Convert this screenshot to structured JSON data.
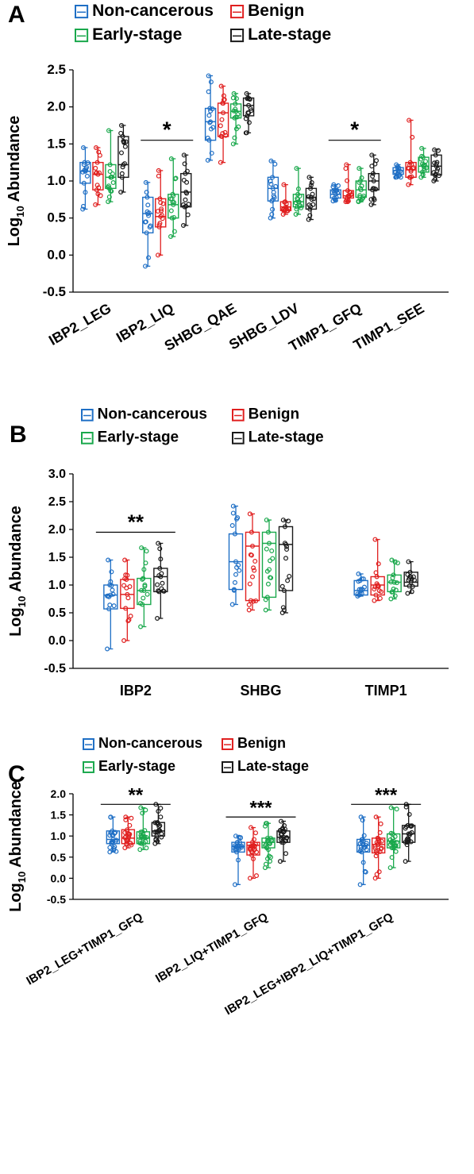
{
  "series_names": [
    "Non-cancerous",
    "Benign",
    "Early-stage",
    "Late-stage"
  ],
  "series_colors": [
    "#1f6fc5",
    "#e02020",
    "#1aa84c",
    "#1a1a1a"
  ],
  "y_axis_label": "Log10 Abundance",
  "chart_data": [
    {
      "panel_label": "A",
      "type": "box",
      "categories": [
        "IBP2_LEG",
        "IBP2_LIQ",
        "SHBG_QAE",
        "SHBG_LDV",
        "TIMP1_GFQ",
        "TIMP1_SEE"
      ],
      "ylabel": "Log10 Abundance",
      "ylim": [
        -0.5,
        2.5
      ],
      "yticks": [
        "2.5",
        "2.0",
        "1.5",
        "1.0",
        "0.5",
        "0.0",
        "-0.5"
      ],
      "ytick_values": [
        2.5,
        2.0,
        1.5,
        1.0,
        0.5,
        0.0,
        -0.5
      ],
      "legend": [
        "Non-cancerous",
        "Benign",
        "Early-stage",
        "Late-stage"
      ],
      "series": [
        {
          "name": "Non-cancerous",
          "boxes": [
            {
              "min": 0.62,
              "q1": 0.97,
              "median": 1.13,
              "q3": 1.25,
              "max": 1.45
            },
            {
              "min": -0.15,
              "q1": 0.3,
              "median": 0.56,
              "q3": 0.78,
              "max": 0.98
            },
            {
              "min": 1.28,
              "q1": 1.55,
              "median": 1.8,
              "q3": 1.98,
              "max": 2.42
            },
            {
              "min": 0.5,
              "q1": 0.73,
              "median": 0.9,
              "q3": 1.05,
              "max": 1.27
            },
            {
              "min": 0.73,
              "q1": 0.77,
              "median": 0.82,
              "q3": 0.88,
              "max": 0.95
            },
            {
              "min": 1.05,
              "q1": 1.09,
              "median": 1.14,
              "q3": 1.18,
              "max": 1.22
            }
          ]
        },
        {
          "name": "Benign",
          "boxes": [
            {
              "min": 0.68,
              "q1": 0.88,
              "median": 1.09,
              "q3": 1.25,
              "max": 1.45
            },
            {
              "min": 0.0,
              "q1": 0.38,
              "median": 0.52,
              "q3": 0.76,
              "max": 1.14
            },
            {
              "min": 1.25,
              "q1": 1.6,
              "median": 1.92,
              "q3": 2.05,
              "max": 2.28
            },
            {
              "min": 0.55,
              "q1": 0.6,
              "median": 0.65,
              "q3": 0.72,
              "max": 0.95
            },
            {
              "min": 0.72,
              "q1": 0.77,
              "median": 0.8,
              "q3": 0.87,
              "max": 1.22
            },
            {
              "min": 0.95,
              "q1": 1.05,
              "median": 1.15,
              "q3": 1.25,
              "max": 1.82
            }
          ]
        },
        {
          "name": "Early-stage",
          "boxes": [
            {
              "min": 0.72,
              "q1": 0.9,
              "median": 1.05,
              "q3": 1.22,
              "max": 1.68
            },
            {
              "min": 0.25,
              "q1": 0.5,
              "median": 0.68,
              "q3": 0.82,
              "max": 1.3
            },
            {
              "min": 1.5,
              "q1": 1.85,
              "median": 1.94,
              "q3": 2.04,
              "max": 2.18
            },
            {
              "min": 0.55,
              "q1": 0.65,
              "median": 0.72,
              "q3": 0.82,
              "max": 1.17
            },
            {
              "min": 0.72,
              "q1": 0.78,
              "median": 0.88,
              "q3": 1.0,
              "max": 1.17
            },
            {
              "min": 1.05,
              "q1": 1.12,
              "median": 1.2,
              "q3": 1.32,
              "max": 1.44
            }
          ]
        },
        {
          "name": "Late-stage",
          "boxes": [
            {
              "min": 0.85,
              "q1": 1.05,
              "median": 1.22,
              "q3": 1.6,
              "max": 1.75
            },
            {
              "min": 0.4,
              "q1": 0.65,
              "median": 0.85,
              "q3": 1.1,
              "max": 1.35
            },
            {
              "min": 1.65,
              "q1": 1.88,
              "median": 2.02,
              "q3": 2.12,
              "max": 2.18
            },
            {
              "min": 0.48,
              "q1": 0.62,
              "median": 0.78,
              "q3": 0.9,
              "max": 1.05
            },
            {
              "min": 0.68,
              "q1": 0.88,
              "median": 1.0,
              "q3": 1.1,
              "max": 1.35
            },
            {
              "min": 1.0,
              "q1": 1.08,
              "median": 1.2,
              "q3": 1.35,
              "max": 1.42
            }
          ]
        }
      ],
      "annotations": [
        {
          "text": "*",
          "category_index": 1,
          "y": 1.55
        },
        {
          "text": "*",
          "category_index": 4,
          "y": 1.55
        }
      ]
    },
    {
      "panel_label": "B",
      "type": "box",
      "categories": [
        "IBP2",
        "SHBG",
        "TIMP1"
      ],
      "ylabel": "Log10 Abundance",
      "ylim": [
        -0.5,
        3.0
      ],
      "yticks": [
        "3.0",
        "2.5",
        "2.0",
        "1.5",
        "1.0",
        "0.5",
        "0.0",
        "-0.5"
      ],
      "ytick_values": [
        3.0,
        2.5,
        2.0,
        1.5,
        1.0,
        0.5,
        0.0,
        -0.5
      ],
      "legend": [
        "Non-cancerous",
        "Benign",
        "Early-stage",
        "Late-stage"
      ],
      "series": [
        {
          "name": "Non-cancerous",
          "boxes": [
            {
              "min": -0.15,
              "q1": 0.57,
              "median": 0.82,
              "q3": 1.0,
              "max": 1.45
            },
            {
              "min": 0.65,
              "q1": 0.92,
              "median": 1.42,
              "q3": 1.92,
              "max": 2.42
            },
            {
              "min": 0.8,
              "q1": 0.82,
              "median": 0.9,
              "q3": 1.08,
              "max": 1.2
            }
          ]
        },
        {
          "name": "Benign",
          "boxes": [
            {
              "min": 0.0,
              "q1": 0.58,
              "median": 0.83,
              "q3": 1.1,
              "max": 1.45
            },
            {
              "min": 0.55,
              "q1": 0.72,
              "median": 1.7,
              "q3": 1.95,
              "max": 2.28
            },
            {
              "min": 0.72,
              "q1": 0.82,
              "median": 1.0,
              "q3": 1.15,
              "max": 1.82
            }
          ]
        },
        {
          "name": "Early-stage",
          "boxes": [
            {
              "min": 0.25,
              "q1": 0.65,
              "median": 0.9,
              "q3": 1.12,
              "max": 1.67
            },
            {
              "min": 0.55,
              "q1": 0.78,
              "median": 1.75,
              "q3": 1.95,
              "max": 2.17
            },
            {
              "min": 0.75,
              "q1": 0.88,
              "median": 1.05,
              "q3": 1.18,
              "max": 1.45
            }
          ]
        },
        {
          "name": "Late-stage",
          "boxes": [
            {
              "min": 0.4,
              "q1": 0.88,
              "median": 1.15,
              "q3": 1.3,
              "max": 1.75
            },
            {
              "min": 0.5,
              "q1": 0.9,
              "median": 1.73,
              "q3": 2.05,
              "max": 2.17
            },
            {
              "min": 0.85,
              "q1": 0.98,
              "median": 1.05,
              "q3": 1.23,
              "max": 1.42
            }
          ]
        }
      ],
      "annotations": [
        {
          "text": "**",
          "category_index": 0,
          "y": 1.95
        }
      ]
    },
    {
      "panel_label": "C",
      "type": "box",
      "categories": [
        "IBP2_LEG+TIMP1_GFQ",
        "IBP2_LIQ+TIMP1_GFQ",
        "IBP2_LEG+IBP2_LIQ+TIMP1_GFQ"
      ],
      "ylabel": "Log10 Abundance",
      "ylim": [
        -0.5,
        2.0
      ],
      "yticks": [
        "2.0",
        "1.5",
        "1.0",
        "0.5",
        "0.0",
        "-0.5"
      ],
      "ytick_values": [
        2.0,
        1.5,
        1.0,
        0.5,
        0.0,
        -0.5
      ],
      "legend": [
        "Non-cancerous",
        "Benign",
        "Early-stage",
        "Late-stage"
      ],
      "series": [
        {
          "name": "Non-cancerous",
          "boxes": [
            {
              "min": 0.62,
              "q1": 0.82,
              "median": 0.92,
              "q3": 1.12,
              "max": 1.45
            },
            {
              "min": -0.15,
              "q1": 0.62,
              "median": 0.75,
              "q3": 0.85,
              "max": 1.0
            },
            {
              "min": -0.15,
              "q1": 0.62,
              "median": 0.78,
              "q3": 0.92,
              "max": 1.45
            }
          ]
        },
        {
          "name": "Benign",
          "boxes": [
            {
              "min": 0.72,
              "q1": 0.82,
              "median": 0.95,
              "q3": 1.15,
              "max": 1.45
            },
            {
              "min": 0.0,
              "q1": 0.55,
              "median": 0.78,
              "q3": 0.85,
              "max": 1.2
            },
            {
              "min": 0.0,
              "q1": 0.6,
              "median": 0.8,
              "q3": 0.95,
              "max": 1.45
            }
          ]
        },
        {
          "name": "Early-stage",
          "boxes": [
            {
              "min": 0.68,
              "q1": 0.82,
              "median": 0.95,
              "q3": 1.1,
              "max": 1.67
            },
            {
              "min": 0.25,
              "q1": 0.72,
              "median": 0.85,
              "q3": 0.95,
              "max": 1.3
            },
            {
              "min": 0.25,
              "q1": 0.72,
              "median": 0.88,
              "q3": 1.05,
              "max": 1.67
            }
          ]
        },
        {
          "name": "Late-stage",
          "boxes": [
            {
              "min": 0.82,
              "q1": 1.0,
              "median": 1.12,
              "q3": 1.32,
              "max": 1.75
            },
            {
              "min": 0.4,
              "q1": 0.85,
              "median": 0.97,
              "q3": 1.12,
              "max": 1.35
            },
            {
              "min": 0.4,
              "q1": 0.85,
              "median": 1.05,
              "q3": 1.25,
              "max": 1.75
            }
          ]
        }
      ],
      "annotations": [
        {
          "text": "**",
          "category_index": 0,
          "y": 1.75
        },
        {
          "text": "***",
          "category_index": 1,
          "y": 1.45
        },
        {
          "text": "***",
          "category_index": 2,
          "y": 1.75
        }
      ]
    }
  ]
}
